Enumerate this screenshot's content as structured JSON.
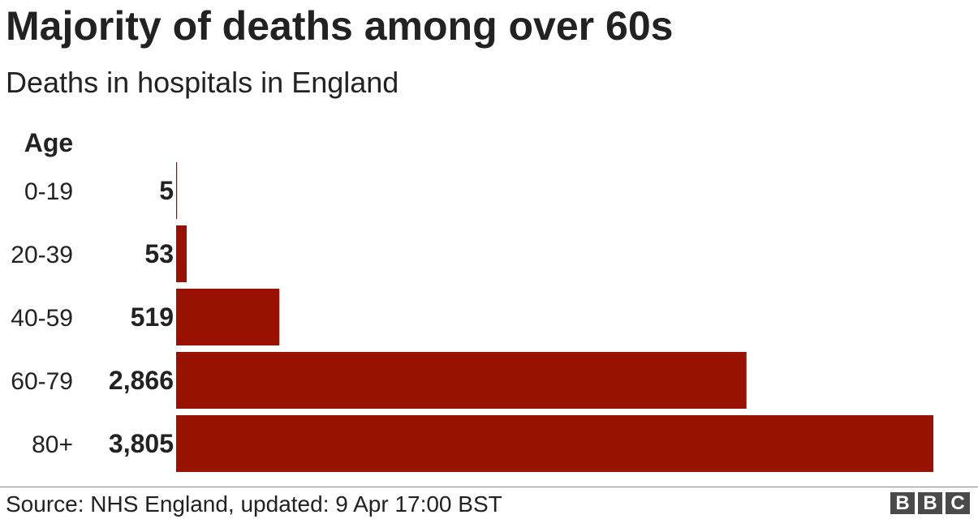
{
  "title": "Majority of deaths among over 60s",
  "subtitle": "Deaths in hospitals in England",
  "source": "Source: NHS England, updated: 9 Apr 17:00 BST",
  "logo": [
    "B",
    "B",
    "C"
  ],
  "colors": {
    "bar": "#991100",
    "text": "#222222",
    "axis": "#888888"
  },
  "chart_data": {
    "type": "bar",
    "orientation": "horizontal",
    "category_header": "Age",
    "categories": [
      "0-19",
      "20-39",
      "40-59",
      "60-79",
      "80+"
    ],
    "values": [
      5,
      53,
      519,
      2866,
      3805
    ],
    "value_labels": [
      "5",
      "53",
      "519",
      "2,866",
      "3,805"
    ],
    "xlim": [
      0,
      3805
    ],
    "grid": false,
    "legend": "none"
  }
}
